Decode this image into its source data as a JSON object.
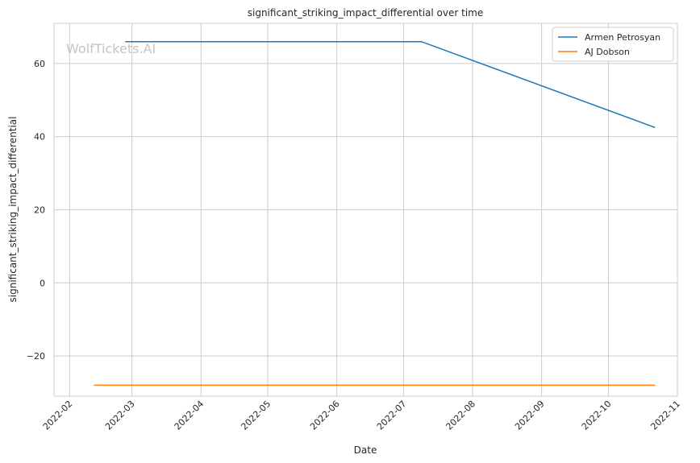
{
  "chart_data": {
    "type": "line",
    "title": "significant_striking_impact_differential over time",
    "xlabel": "Date",
    "ylabel": "significant_striking_impact_differential",
    "watermark": "WolfTickets.AI",
    "x_ticks": [
      "2022-02",
      "2022-03",
      "2022-04",
      "2022-05",
      "2022-06",
      "2022-07",
      "2022-08",
      "2022-09",
      "2022-10",
      "2022-11"
    ],
    "y_ticks": [
      "−20",
      "0",
      "20",
      "40",
      "60"
    ],
    "xlim": [
      "2022-01-25",
      "2022-11-01"
    ],
    "ylim": [
      -31,
      71
    ],
    "grid": true,
    "legend_position": "top-right",
    "series": [
      {
        "name": "Armen Petrosyan",
        "color": "#1f77b4",
        "points": [
          {
            "x": "2022-02-26",
            "y": 66
          },
          {
            "x": "2022-07-09",
            "y": 66
          },
          {
            "x": "2022-10-22",
            "y": 42.5
          }
        ]
      },
      {
        "name": "AJ Dobson",
        "color": "#ff7f0e",
        "points": [
          {
            "x": "2022-02-12",
            "y": -28
          },
          {
            "x": "2022-10-22",
            "y": -28
          }
        ]
      }
    ]
  }
}
